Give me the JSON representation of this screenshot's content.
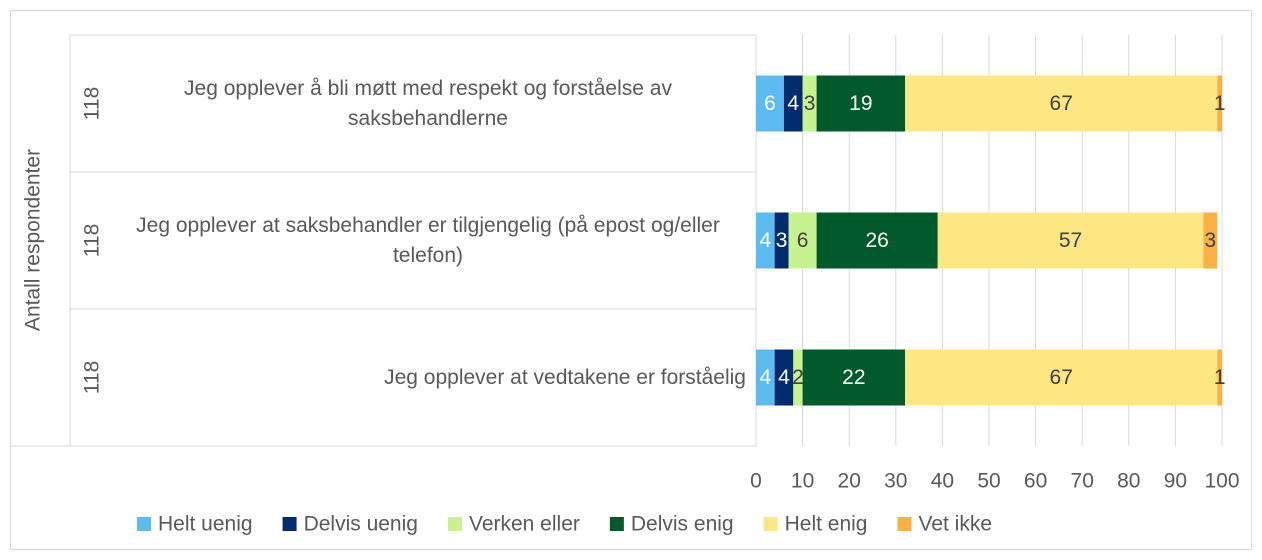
{
  "chart_data": {
    "type": "stacked_barh",
    "y_label": "Antall respondenter",
    "categories": [
      "Jeg opplever å bli møtt med respekt og forståelse av saksbehandlerne",
      "Jeg opplever at saksbehandler er tilgjengelig (på epost og/eller telefon)",
      "Jeg opplever at vedtakene er forståelig"
    ],
    "respondents": [
      118,
      118,
      118
    ],
    "series": [
      {
        "name": "Helt uenig",
        "color": "#5cbcf2",
        "label_color": "#ffffff",
        "values": [
          6,
          4,
          4
        ]
      },
      {
        "name": "Delvis uenig",
        "color": "#002b6e",
        "label_color": "#ffffff",
        "values": [
          4,
          3,
          4
        ]
      },
      {
        "name": "Verken eller",
        "color": "#c8f28e",
        "label_color": "#404040",
        "values": [
          3,
          6,
          2
        ]
      },
      {
        "name": "Delvis enig",
        "color": "#005a2c",
        "label_color": "#ffffff",
        "values": [
          19,
          26,
          22
        ]
      },
      {
        "name": "Helt enig",
        "color": "#fde783",
        "label_color": "#404040",
        "values": [
          67,
          57,
          67
        ]
      },
      {
        "name": "Vet ikke",
        "color": "#f9b142",
        "label_color": "#404040",
        "values": [
          1,
          3,
          1
        ]
      }
    ],
    "xlim": [
      0,
      100
    ],
    "xticks": [
      0,
      10,
      20,
      30,
      40,
      50,
      60,
      70,
      80,
      90,
      100
    ],
    "grid": true,
    "legend": "bottom"
  }
}
